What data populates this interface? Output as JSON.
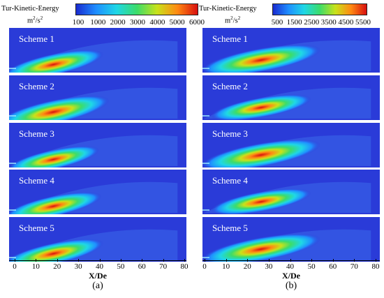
{
  "colorbar_a": {
    "title": "Tur-Kinetic-Energy",
    "unit_base": "m",
    "unit_exp1": "2",
    "unit_mid": "/s",
    "unit_exp2": "2",
    "ticks": [
      "100",
      "1000",
      "2000",
      "3000",
      "4000",
      "5000",
      "6000"
    ]
  },
  "colorbar_b": {
    "title": "Tur-Kinetic-Energy",
    "unit_base": "m",
    "unit_exp1": "2",
    "unit_mid": "/s",
    "unit_exp2": "2",
    "ticks": [
      "500",
      "1500",
      "2500",
      "3500",
      "4500",
      "5500"
    ]
  },
  "panels_a": {
    "schemes": [
      "Scheme 1",
      "Scheme 2",
      "Scheme 3",
      "Scheme 4",
      "Scheme 5"
    ],
    "intensity": [
      0.85,
      0.95,
      0.78,
      0.82,
      0.85
    ]
  },
  "panels_b": {
    "schemes": [
      "Scheme 1",
      "Scheme 2",
      "Scheme 3",
      "Scheme 4",
      "Scheme 5"
    ],
    "intensity": [
      0.95,
      0.8,
      0.95,
      0.8,
      0.95
    ]
  },
  "axis_a": {
    "ticks": [
      "0",
      "10",
      "20",
      "30",
      "40",
      "50",
      "60",
      "70",
      "80"
    ],
    "xlabel": "X/De",
    "sublabel": "(a)"
  },
  "axis_b": {
    "ticks": [
      "0",
      "10",
      "20",
      "30",
      "40",
      "50",
      "60",
      "70",
      "80"
    ],
    "xlabel": "X/De",
    "sublabel": "(b)"
  },
  "colors": {
    "field": "#2a3bd8",
    "spectrum": [
      "#1a2bd0",
      "#1f8fff",
      "#1fd7e6",
      "#3cdc6a",
      "#c8e21a",
      "#ff8a12",
      "#d80f0f"
    ]
  }
}
